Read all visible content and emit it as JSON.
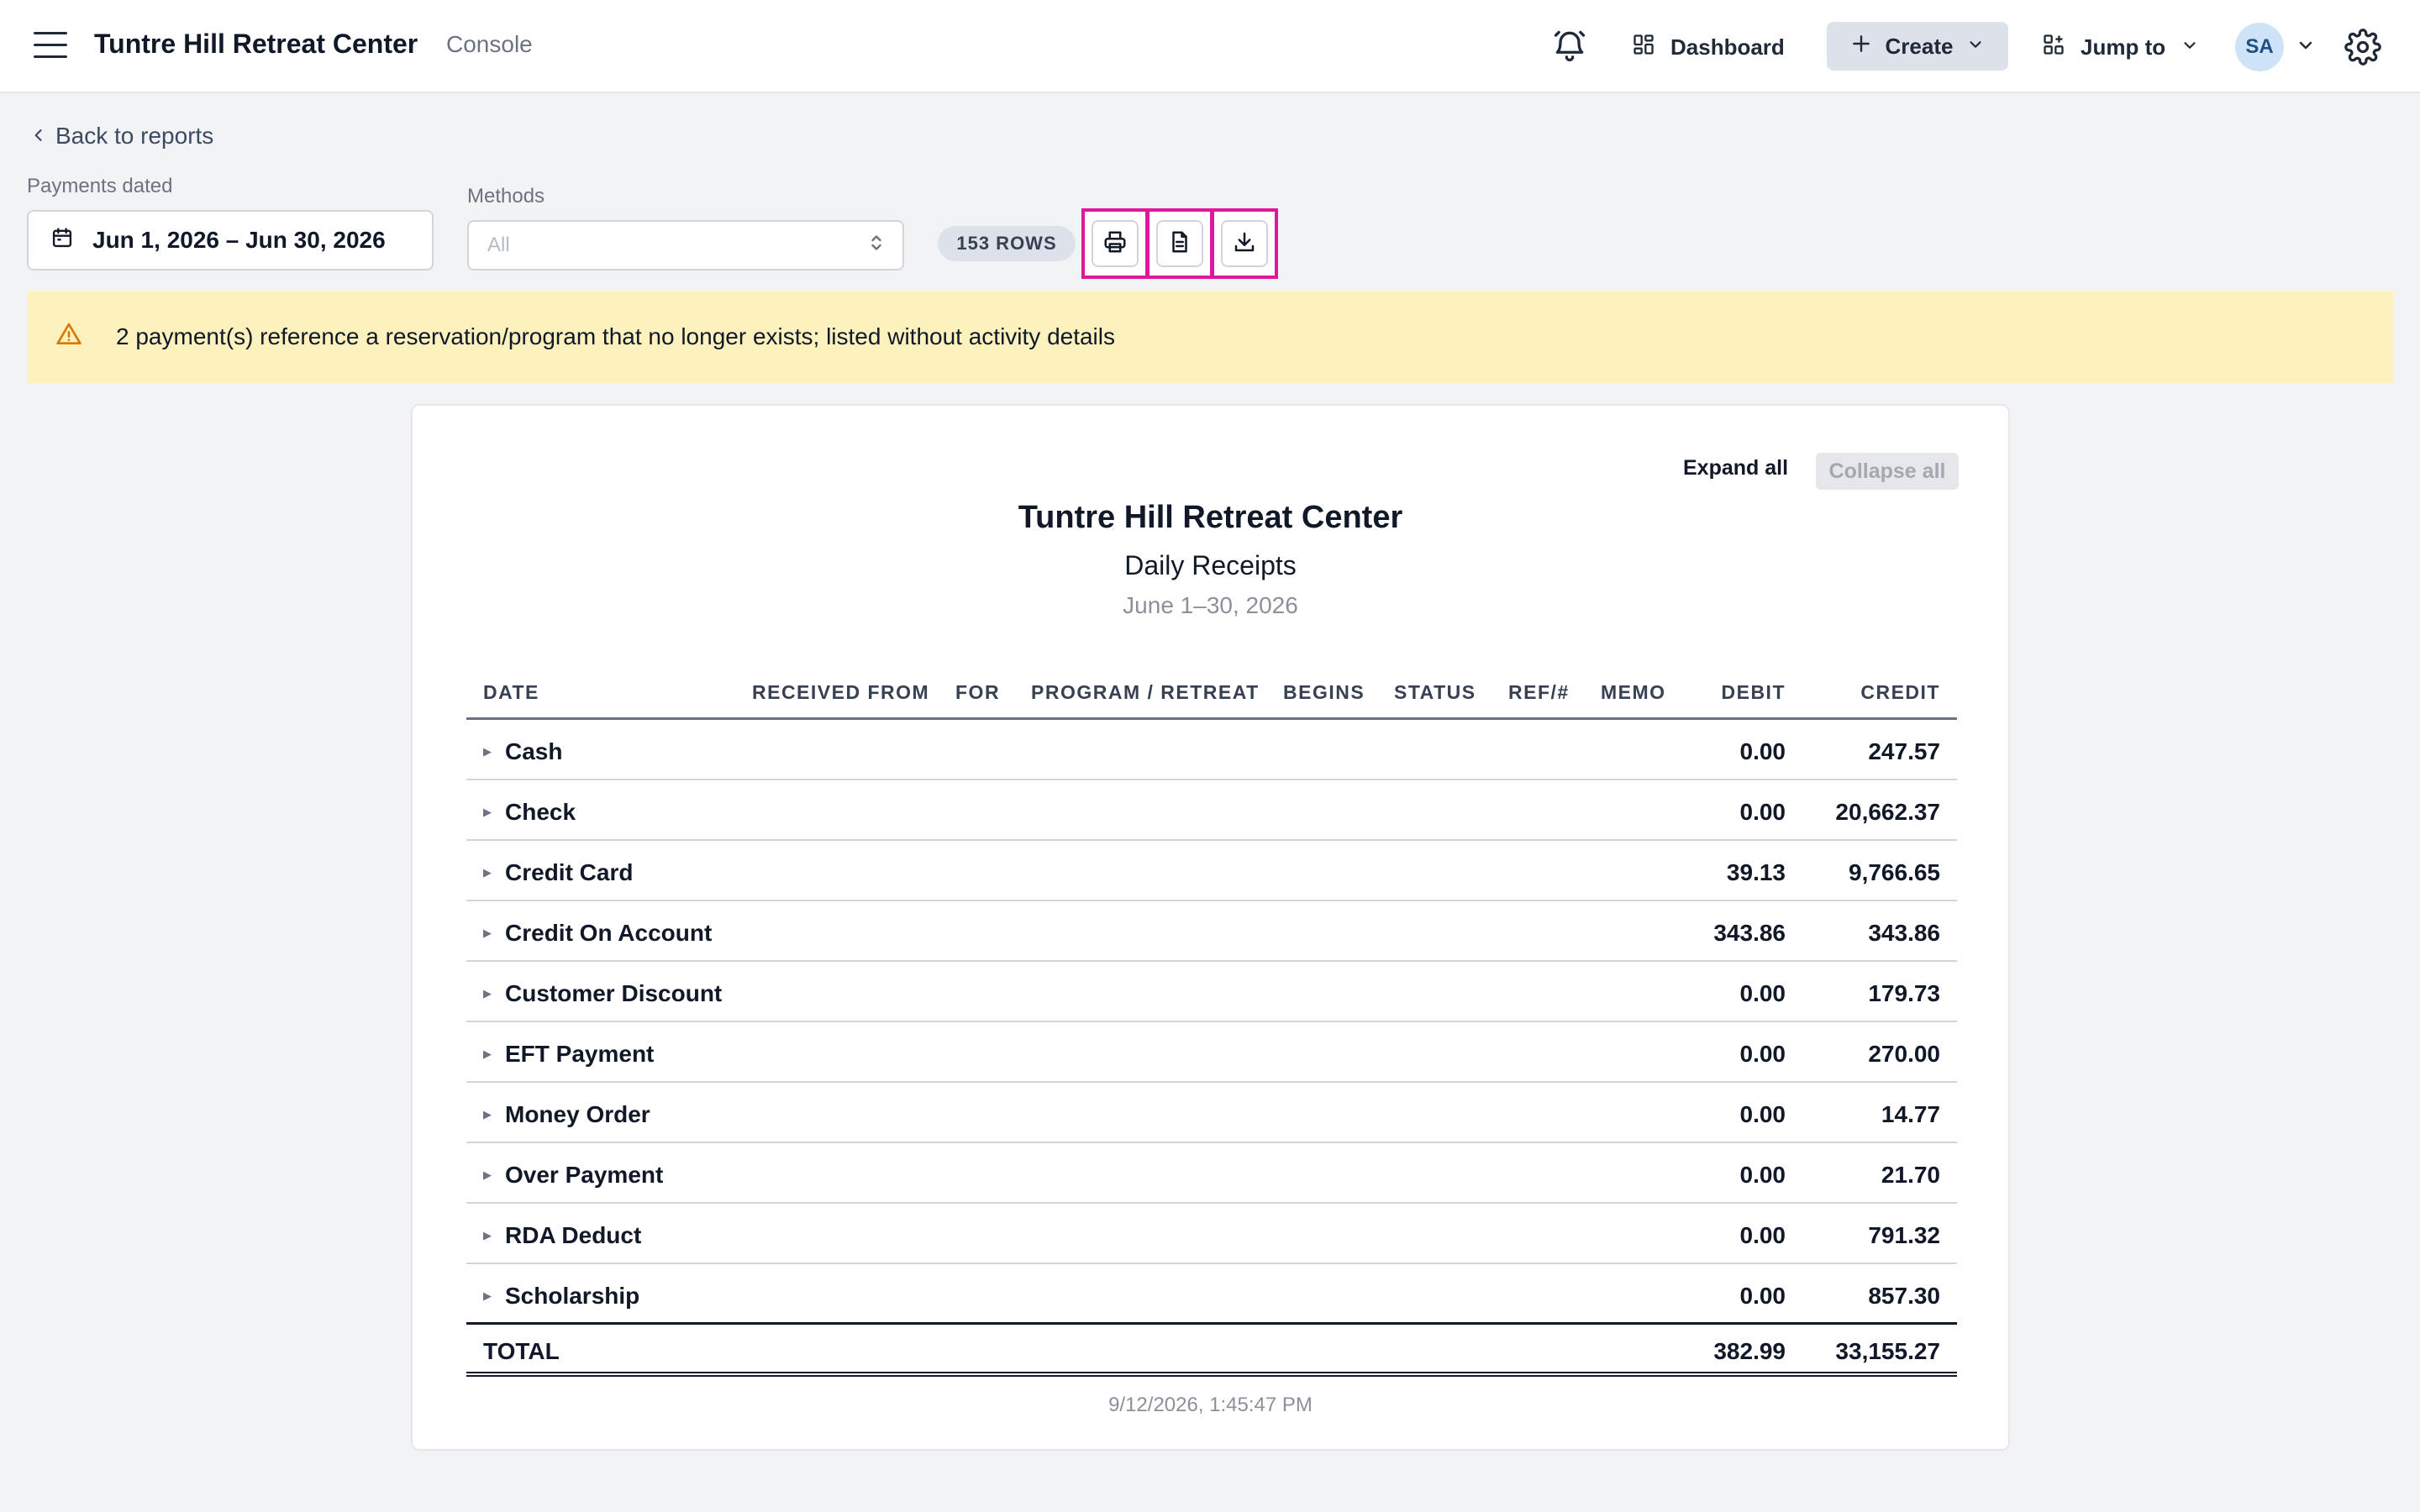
{
  "header": {
    "app_title": "Tuntre Hill Retreat Center",
    "app_subtitle": "Console",
    "dashboard_label": "Dashboard",
    "create_label": "Create",
    "jump_label": "Jump to",
    "avatar_initials": "SA"
  },
  "filters": {
    "back_label": "Back to reports",
    "payments_dated_label": "Payments dated",
    "date_range_value": "Jun 1, 2026 – Jun 30, 2026",
    "methods_label": "Methods",
    "methods_value": "All",
    "rows_badge": "153 ROWS"
  },
  "toolbar": {
    "print_icon": "printer-icon",
    "document_icon": "document-icon",
    "download_icon": "download-icon"
  },
  "warning": {
    "icon": "warning-triangle-icon",
    "text": "2 payment(s) reference a reservation/program that no longer exists; listed without activity details"
  },
  "report": {
    "expand_all": "Expand all",
    "collapse_all": "Collapse all",
    "title": "Tuntre Hill Retreat Center",
    "subtitle": "Daily Receipts",
    "date_range": "June 1–30, 2026",
    "columns": [
      "DATE",
      "RECEIVED FROM",
      "FOR",
      "PROGRAM / RETREAT",
      "BEGINS",
      "STATUS",
      "REF/#",
      "MEMO",
      "DEBIT",
      "CREDIT"
    ],
    "rows": [
      {
        "name": "Cash",
        "debit": "0.00",
        "credit": "247.57"
      },
      {
        "name": "Check",
        "debit": "0.00",
        "credit": "20,662.37"
      },
      {
        "name": "Credit Card",
        "debit": "39.13",
        "credit": "9,766.65"
      },
      {
        "name": "Credit On Account",
        "debit": "343.86",
        "credit": "343.86"
      },
      {
        "name": "Customer Discount",
        "debit": "0.00",
        "credit": "179.73"
      },
      {
        "name": "EFT Payment",
        "debit": "0.00",
        "credit": "270.00"
      },
      {
        "name": "Money Order",
        "debit": "0.00",
        "credit": "14.77"
      },
      {
        "name": "Over Payment",
        "debit": "0.00",
        "credit": "21.70"
      },
      {
        "name": "RDA Deduct",
        "debit": "0.00",
        "credit": "791.32"
      },
      {
        "name": "Scholarship",
        "debit": "0.00",
        "credit": "857.30"
      }
    ],
    "total": {
      "label": "TOTAL",
      "debit": "382.99",
      "credit": "33,155.27"
    },
    "generated_at": "9/12/2026, 1:45:47 PM"
  },
  "colors": {
    "highlight": "#e0169b",
    "warning_bg": "#fdf1bd",
    "warning_icon": "#d97706"
  }
}
